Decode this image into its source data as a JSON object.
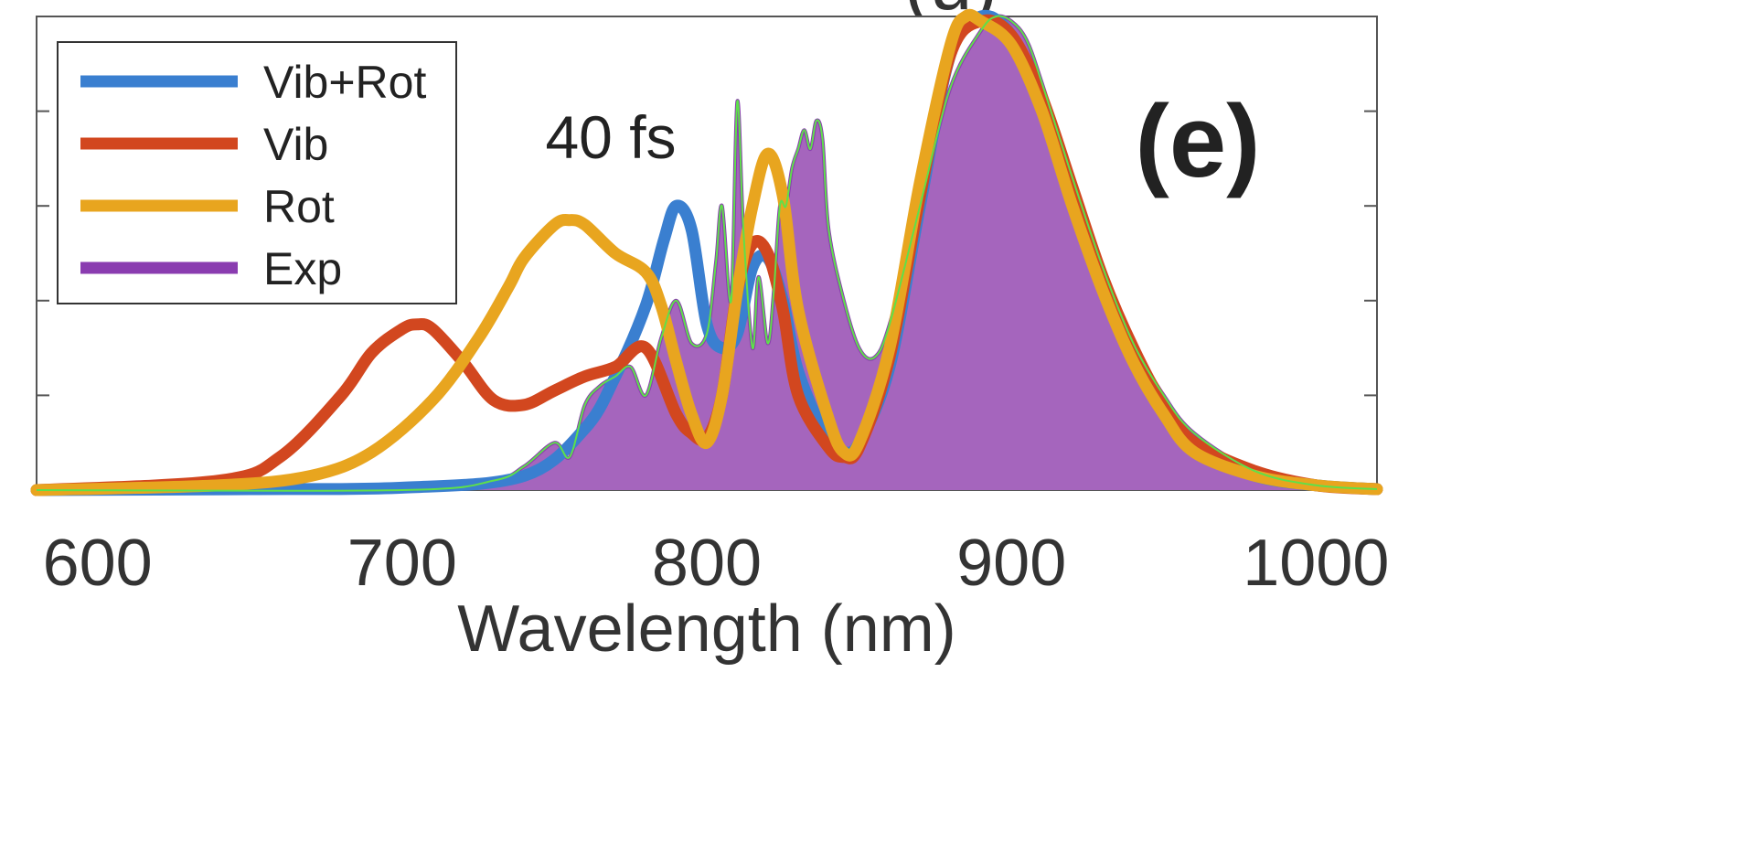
{
  "chart_data": {
    "type": "line",
    "title_fragment": "(u)",
    "panel_label": "(e)",
    "annotation": "40 fs",
    "xlabel": "Wavelength (nm)",
    "ylabel": "",
    "xlim": [
      580,
      1020
    ],
    "ylim": [
      0,
      1.0
    ],
    "x_ticks": [
      600,
      700,
      800,
      900,
      1000
    ],
    "x_tick_labels": [
      "600",
      "700",
      "800",
      "900",
      "1000"
    ],
    "y_ticks": [
      0.2,
      0.4,
      0.6,
      0.8
    ],
    "grid": false,
    "legend_placement": "top-left",
    "legend": [
      "Vib+Rot",
      "Vib",
      "Rot",
      "Exp"
    ],
    "series": [
      {
        "name": "Vib+Rot",
        "color": "#3a7fd0",
        "x": [
          580,
          650,
          700,
          740,
          760,
          770,
          780,
          786,
          790,
          795,
          800,
          805,
          810,
          815,
          820,
          825,
          830,
          840,
          845,
          850,
          860,
          870,
          880,
          890,
          900,
          910,
          920,
          930,
          940,
          950,
          960,
          980,
          1000,
          1020
        ],
        "y": [
          0.0,
          0.002,
          0.005,
          0.03,
          0.13,
          0.24,
          0.39,
          0.53,
          0.6,
          0.55,
          0.35,
          0.3,
          0.33,
          0.47,
          0.49,
          0.4,
          0.25,
          0.1,
          0.08,
          0.1,
          0.26,
          0.6,
          0.92,
          1.0,
          0.96,
          0.82,
          0.62,
          0.43,
          0.28,
          0.17,
          0.09,
          0.03,
          0.01,
          0.002
        ]
      },
      {
        "name": "Vib",
        "color": "#d2471f",
        "x": [
          580,
          640,
          660,
          680,
          690,
          700,
          705,
          710,
          720,
          730,
          740,
          750,
          760,
          770,
          780,
          790,
          795,
          800,
          805,
          810,
          815,
          820,
          825,
          830,
          840,
          845,
          850,
          860,
          870,
          880,
          890,
          900,
          910,
          920,
          930,
          940,
          950,
          960,
          980,
          1000,
          1020
        ],
        "y": [
          0.0,
          0.02,
          0.07,
          0.2,
          0.29,
          0.34,
          0.35,
          0.34,
          0.27,
          0.19,
          0.18,
          0.21,
          0.24,
          0.26,
          0.3,
          0.16,
          0.12,
          0.11,
          0.2,
          0.42,
          0.52,
          0.5,
          0.38,
          0.2,
          0.09,
          0.07,
          0.09,
          0.28,
          0.62,
          0.92,
          0.99,
          0.96,
          0.83,
          0.64,
          0.45,
          0.3,
          0.18,
          0.1,
          0.04,
          0.01,
          0.002
        ]
      },
      {
        "name": "Rot",
        "color": "#e8a51f",
        "x": [
          580,
          640,
          670,
          690,
          710,
          725,
          735,
          740,
          750,
          755,
          760,
          770,
          780,
          785,
          790,
          795,
          800,
          805,
          810,
          815,
          820,
          825,
          830,
          840,
          845,
          850,
          860,
          870,
          880,
          885,
          890,
          900,
          910,
          920,
          930,
          940,
          950,
          960,
          980,
          1000,
          1020
        ],
        "y": [
          0.0,
          0.01,
          0.03,
          0.08,
          0.19,
          0.32,
          0.43,
          0.49,
          0.56,
          0.57,
          0.56,
          0.5,
          0.46,
          0.39,
          0.27,
          0.16,
          0.1,
          0.2,
          0.42,
          0.6,
          0.71,
          0.62,
          0.38,
          0.15,
          0.08,
          0.1,
          0.3,
          0.65,
          0.94,
          1.0,
          0.99,
          0.94,
          0.8,
          0.6,
          0.42,
          0.27,
          0.16,
          0.08,
          0.03,
          0.01,
          0.002
        ]
      },
      {
        "name": "Exp",
        "color": "#8a3cb0",
        "fill": "#a565bd",
        "x": [
          580,
          700,
          730,
          740,
          750,
          755,
          760,
          765,
          770,
          775,
          780,
          785,
          790,
          795,
          800,
          803,
          805,
          808,
          810,
          812,
          815,
          817,
          820,
          822,
          824,
          826,
          828,
          830,
          832,
          834,
          836,
          838,
          840,
          845,
          850,
          855,
          860,
          870,
          880,
          890,
          895,
          900,
          905,
          910,
          920,
          930,
          940,
          950,
          960,
          980,
          1000,
          1020
        ],
        "y": [
          0.0,
          0.0,
          0.02,
          0.05,
          0.1,
          0.07,
          0.18,
          0.22,
          0.24,
          0.26,
          0.2,
          0.32,
          0.4,
          0.31,
          0.33,
          0.48,
          0.6,
          0.4,
          0.82,
          0.55,
          0.3,
          0.45,
          0.31,
          0.42,
          0.6,
          0.6,
          0.68,
          0.72,
          0.76,
          0.72,
          0.78,
          0.74,
          0.55,
          0.4,
          0.3,
          0.28,
          0.35,
          0.6,
          0.85,
          0.97,
          1.0,
          0.99,
          0.95,
          0.86,
          0.66,
          0.47,
          0.31,
          0.2,
          0.12,
          0.04,
          0.01,
          0.002
        ]
      }
    ]
  }
}
